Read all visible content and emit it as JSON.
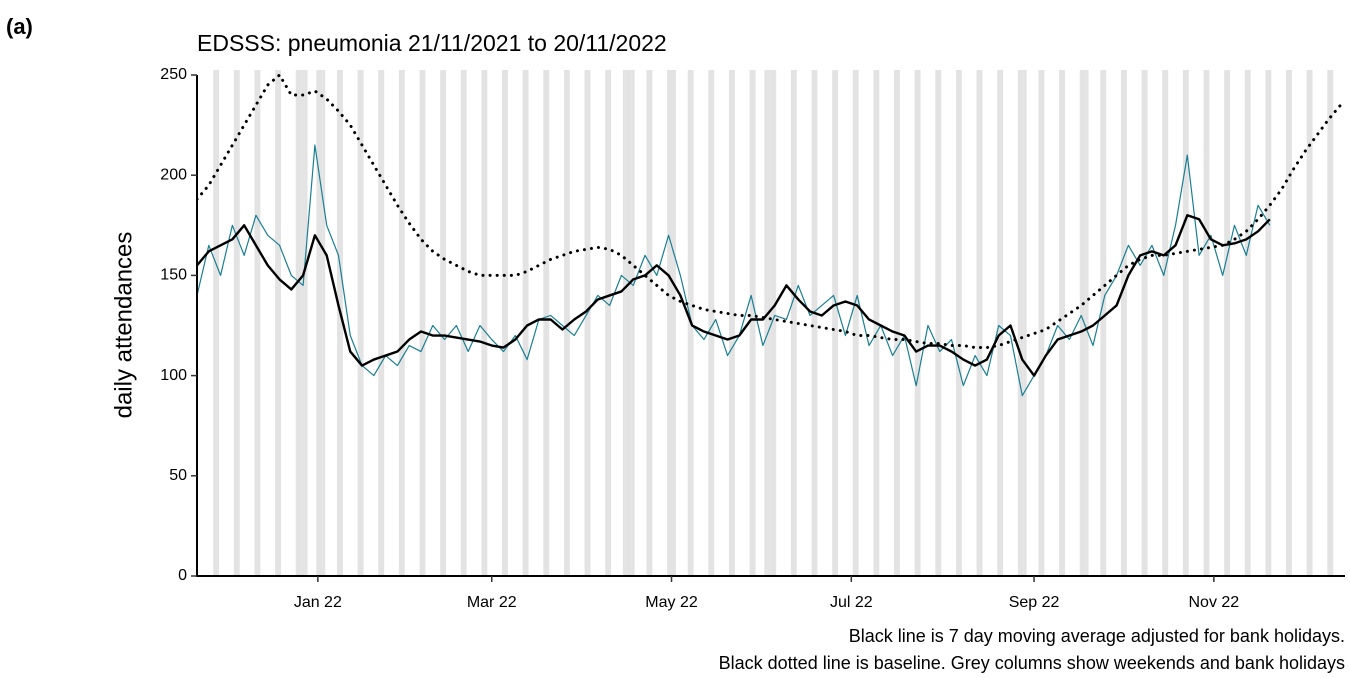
{
  "chart_data": {
    "type": "line",
    "panel_label": "(a)",
    "title": "EDSSS: pneumonia 21/11/2021 to 20/11/2022",
    "ylabel": "daily attendances",
    "footnotes": [
      "Black line is 7 day moving average adjusted for bank holidays.",
      "Black dotted line is baseline. Grey columns show weekends and bank holidays"
    ],
    "xlim": [
      0,
      389.5
    ],
    "xticks": [
      {
        "value": 41,
        "label": "Jan 22"
      },
      {
        "value": 100,
        "label": "Mar 22"
      },
      {
        "value": 161,
        "label": "May 22"
      },
      {
        "value": 222,
        "label": "Jul 22"
      },
      {
        "value": 284,
        "label": "Sep 22"
      },
      {
        "value": 345,
        "label": "Nov 22"
      }
    ],
    "ylim": [
      0,
      250
    ],
    "yticks": [
      0,
      50,
      100,
      150,
      200,
      250
    ],
    "shade_color": "#e3e3e3",
    "weekends": [
      6,
      13,
      20,
      27,
      34,
      41,
      48,
      55,
      62,
      69,
      76,
      83,
      90,
      97,
      104,
      111,
      118,
      125,
      132,
      139,
      146,
      153,
      160,
      167,
      174,
      181,
      188,
      195,
      202,
      209,
      216,
      223,
      230,
      237,
      244,
      251,
      258,
      265,
      272,
      279,
      286,
      293,
      300,
      307,
      314,
      321,
      328,
      335,
      342,
      349,
      356,
      363,
      370,
      377,
      384
    ],
    "bank_holidays": [
      36,
      37,
      43,
      145,
      148,
      162,
      193,
      194,
      281,
      302
    ],
    "x": [
      0,
      4,
      8,
      12,
      16,
      20,
      24,
      28,
      32,
      36,
      40,
      44,
      48,
      52,
      56,
      60,
      64,
      68,
      72,
      76,
      80,
      84,
      88,
      92,
      96,
      100,
      104,
      108,
      112,
      116,
      120,
      124,
      128,
      132,
      136,
      140,
      144,
      148,
      152,
      156,
      160,
      164,
      168,
      172,
      176,
      180,
      184,
      188,
      192,
      196,
      200,
      204,
      208,
      212,
      216,
      220,
      224,
      228,
      232,
      236,
      240,
      244,
      248,
      252,
      256,
      260,
      264,
      268,
      272,
      276,
      280,
      284,
      288,
      292,
      296,
      300,
      304,
      308,
      312,
      316,
      320,
      324,
      328,
      332,
      336,
      340,
      344,
      348,
      352,
      356,
      360,
      364,
      368,
      372,
      376,
      380,
      384,
      388
    ],
    "series": [
      {
        "name": "daily",
        "color": "#1a7f93",
        "width": 1.2,
        "dash": "solid",
        "values": [
          140,
          165,
          150,
          175,
          160,
          180,
          170,
          165,
          150,
          145,
          215,
          175,
          160,
          120,
          105,
          100,
          110,
          105,
          115,
          112,
          125,
          118,
          125,
          112,
          125,
          118,
          112,
          120,
          108,
          128,
          130,
          125,
          120,
          130,
          140,
          135,
          150,
          145,
          160,
          150,
          170,
          150,
          125,
          118,
          128,
          110,
          120,
          140,
          115,
          130,
          128,
          145,
          130,
          135,
          140,
          120,
          140,
          115,
          125,
          110,
          120,
          95,
          125,
          112,
          118,
          95,
          110,
          100,
          125,
          120,
          90,
          100,
          110,
          125,
          118,
          130,
          115,
          140,
          150,
          165,
          155,
          165,
          150,
          175,
          210,
          160,
          170,
          150,
          175,
          160,
          185,
          175,
          null,
          null,
          null,
          null,
          null,
          null
        ]
      },
      {
        "name": "moving average",
        "color": "#000000",
        "width": 2.4,
        "dash": "solid",
        "values": [
          155,
          162,
          165,
          168,
          175,
          165,
          155,
          148,
          143,
          150,
          170,
          160,
          135,
          112,
          105,
          108,
          110,
          112,
          118,
          122,
          120,
          120,
          119,
          118,
          117,
          115,
          114,
          118,
          125,
          128,
          128,
          123,
          128,
          132,
          138,
          140,
          142,
          148,
          150,
          155,
          150,
          140,
          125,
          122,
          120,
          118,
          120,
          128,
          128,
          135,
          145,
          138,
          132,
          130,
          135,
          137,
          135,
          128,
          125,
          122,
          120,
          112,
          115,
          115,
          112,
          108,
          105,
          108,
          120,
          125,
          108,
          100,
          110,
          118,
          120,
          122,
          125,
          130,
          135,
          150,
          160,
          162,
          160,
          165,
          180,
          178,
          168,
          165,
          166,
          168,
          172,
          178,
          null,
          null,
          null,
          null,
          null,
          null
        ]
      },
      {
        "name": "baseline",
        "color": "#000000",
        "width": 2.4,
        "dash": "dotted",
        "values": [
          188,
          195,
          205,
          215,
          225,
          235,
          245,
          250,
          240,
          240,
          242,
          238,
          232,
          225,
          215,
          205,
          195,
          185,
          176,
          168,
          162,
          158,
          155,
          152,
          150,
          150,
          150,
          150,
          152,
          155,
          158,
          160,
          162,
          163,
          164,
          163,
          160,
          155,
          150,
          145,
          140,
          137,
          135,
          133,
          132,
          131,
          130,
          130,
          129,
          128,
          127,
          126,
          125,
          124,
          123,
          122,
          120,
          120,
          119,
          118,
          118,
          117,
          116,
          116,
          115,
          115,
          114,
          114,
          115,
          117,
          119,
          121,
          123,
          127,
          131,
          135,
          140,
          145,
          150,
          155,
          158,
          160,
          160,
          161,
          162,
          163,
          164,
          165,
          168,
          172,
          178,
          185,
          193,
          203,
          212,
          220,
          228,
          235
        ]
      }
    ]
  }
}
